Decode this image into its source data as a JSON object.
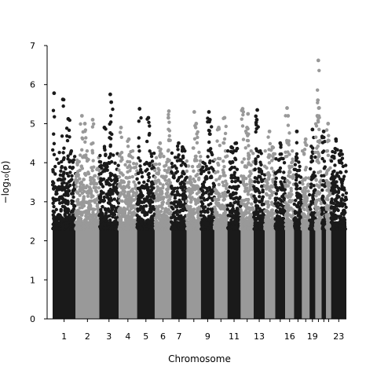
{
  "chart_data": {
    "type": "scatter",
    "xlabel": "Chromosome",
    "ylabel": "−log₁₀(p)",
    "ylim": [
      0,
      7
    ],
    "yticks": [
      0,
      1,
      2,
      3,
      4,
      5,
      6,
      7
    ],
    "grid": false,
    "legend": "none",
    "colors": {
      "odd": "#1a1a1a",
      "even": "#999999"
    },
    "chromosomes": [
      {
        "name": "1",
        "label": "1",
        "start": 0,
        "end": 235,
        "peak": 5.78,
        "top": [
          [
            15,
            5.78
          ],
          [
            105,
            5.62
          ],
          [
            160,
            5.12
          ]
        ]
      },
      {
        "name": "2",
        "label": "2",
        "start": 235,
        "end": 478,
        "peak": 5.2,
        "top": [
          [
            300,
            5.2
          ],
          [
            330,
            5.0
          ],
          [
            410,
            5.1
          ]
        ]
      },
      {
        "name": "3",
        "label": "3",
        "start": 478,
        "end": 676,
        "peak": 5.75,
        "top": [
          [
            590,
            5.75
          ],
          [
            600,
            5.55
          ],
          [
            530,
            4.9
          ]
        ]
      },
      {
        "name": "4",
        "label": "4",
        "start": 676,
        "end": 865,
        "peak": 4.9,
        "top": [
          [
            700,
            4.9
          ],
          [
            780,
            4.6
          ]
        ]
      },
      {
        "name": "5",
        "label": "5",
        "start": 865,
        "end": 1045,
        "peak": 5.38,
        "top": [
          [
            890,
            5.38
          ],
          [
            980,
            5.15
          ]
        ]
      },
      {
        "name": "6",
        "label": "6",
        "start": 1045,
        "end": 1215,
        "peak": 5.32,
        "top": [
          [
            1190,
            5.32
          ],
          [
            1185,
            5.15
          ],
          [
            1100,
            4.5
          ]
        ]
      },
      {
        "name": "7",
        "label": "7",
        "start": 1215,
        "end": 1373,
        "peak": 4.5,
        "top": [
          [
            1290,
            4.5
          ],
          [
            1330,
            4.4
          ]
        ]
      },
      {
        "name": "8",
        "label": "",
        "start": 1373,
        "end": 1518,
        "peak": 5.3,
        "top": [
          [
            1450,
            5.3
          ],
          [
            1470,
            5.0
          ]
        ]
      },
      {
        "name": "9",
        "label": "9",
        "start": 1518,
        "end": 1656,
        "peak": 5.3,
        "top": [
          [
            1600,
            5.3
          ],
          [
            1610,
            5.1
          ]
        ]
      },
      {
        "name": "10",
        "label": "",
        "start": 1656,
        "end": 1790,
        "peak": 5.15,
        "top": [
          [
            1760,
            5.15
          ],
          [
            1700,
            4.9
          ]
        ]
      },
      {
        "name": "11",
        "label": "11",
        "start": 1790,
        "end": 1925,
        "peak": 4.5,
        "top": [
          [
            1880,
            4.5
          ],
          [
            1830,
            4.4
          ]
        ]
      },
      {
        "name": "12",
        "label": "",
        "start": 1925,
        "end": 2058,
        "peak": 5.38,
        "top": [
          [
            1945,
            5.38
          ],
          [
            2000,
            5.25
          ],
          [
            1990,
            4.9
          ]
        ]
      },
      {
        "name": "13",
        "label": "13",
        "start": 2058,
        "end": 2172,
        "peak": 5.35,
        "top": [
          [
            2095,
            5.35
          ],
          [
            2090,
            5.1
          ]
        ]
      },
      {
        "name": "14",
        "label": "",
        "start": 2172,
        "end": 2279,
        "peak": 4.8,
        "top": [
          [
            2220,
            4.8
          ],
          [
            2250,
            4.4
          ]
        ]
      },
      {
        "name": "15",
        "label": "",
        "start": 2279,
        "end": 2381,
        "peak": 4.5,
        "top": [
          [
            2330,
            4.5
          ]
        ]
      },
      {
        "name": "16",
        "label": "16",
        "start": 2381,
        "end": 2471,
        "peak": 5.4,
        "top": [
          [
            2400,
            5.4
          ],
          [
            2410,
            5.2
          ]
        ]
      },
      {
        "name": "17",
        "label": "",
        "start": 2471,
        "end": 2552,
        "peak": 4.8,
        "top": [
          [
            2500,
            4.8
          ]
        ]
      },
      {
        "name": "18",
        "label": "",
        "start": 2552,
        "end": 2630,
        "peak": 4.6,
        "top": [
          [
            2590,
            4.6
          ]
        ]
      },
      {
        "name": "19",
        "label": "19",
        "start": 2630,
        "end": 2689,
        "peak": 4.85,
        "top": [
          [
            2660,
            4.85
          ]
        ]
      },
      {
        "name": "20",
        "label": "",
        "start": 2689,
        "end": 2753,
        "peak": 6.62,
        "top": [
          [
            2720,
            6.62
          ],
          [
            2715,
            5.6
          ],
          [
            2725,
            5.4
          ],
          [
            2710,
            5.2
          ]
        ]
      },
      {
        "name": "21",
        "label": "",
        "start": 2753,
        "end": 2800,
        "peak": 4.8,
        "top": [
          [
            2775,
            4.8
          ]
        ]
      },
      {
        "name": "22",
        "label": "",
        "start": 2800,
        "end": 2851,
        "peak": 5.0,
        "top": [
          [
            2820,
            5.0
          ]
        ]
      },
      {
        "name": "23",
        "label": "23",
        "start": 2851,
        "end": 3007,
        "peak": 4.6,
        "top": [
          [
            2900,
            4.6
          ],
          [
            2950,
            4.3
          ]
        ]
      }
    ]
  }
}
